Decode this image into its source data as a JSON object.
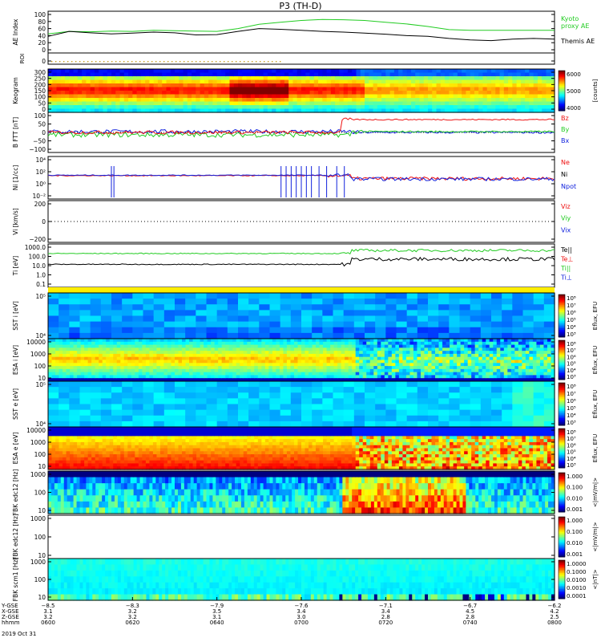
{
  "title": "P3 (TH-D)",
  "colors": {
    "green": "#22cc22",
    "black": "#000000",
    "red": "#ee1111",
    "blue": "#1122dd",
    "yellow": "#ffee00"
  },
  "chart_data": [
    {
      "type": "line",
      "panel": "ae",
      "ylabel": "AE Index",
      "ylim": [
        0,
        100
      ],
      "yticks": [
        "100",
        "80",
        "60",
        "40",
        "20",
        "0"
      ],
      "series": [
        {
          "name": "Kyoto proxy AE",
          "color": "green",
          "x": [
            0,
            5,
            10,
            15,
            20,
            25,
            30,
            35,
            40,
            45,
            50,
            55,
            60,
            65,
            70,
            75,
            80,
            85,
            90,
            95,
            100,
            105,
            110,
            115,
            120
          ],
          "y": [
            45,
            52,
            51,
            53,
            52,
            55,
            54,
            53,
            52,
            60,
            72,
            78,
            83,
            86,
            85,
            83,
            78,
            73,
            66,
            57,
            55,
            55,
            55,
            55,
            55
          ]
        },
        {
          "name": "Themis AE",
          "color": "black",
          "x": [
            0,
            5,
            10,
            15,
            20,
            25,
            30,
            35,
            40,
            45,
            50,
            55,
            60,
            65,
            70,
            75,
            80,
            85,
            90,
            95,
            100,
            105,
            110,
            115,
            120
          ],
          "y": [
            38,
            52,
            48,
            45,
            47,
            50,
            48,
            42,
            43,
            52,
            60,
            58,
            55,
            52,
            50,
            47,
            44,
            40,
            38,
            32,
            28,
            26,
            30,
            32,
            30
          ]
        }
      ]
    },
    {
      "type": "line",
      "panel": "roi",
      "ylabel": "ROI",
      "yticks": [
        "0"
      ]
    },
    {
      "type": "heatmap",
      "panel": "keogram",
      "ylabel": "Keogram",
      "yticks": [
        "300",
        "250",
        "200",
        "150",
        "100",
        "50",
        "0"
      ],
      "colorbar": {
        "ticks": [
          "6000",
          "5000",
          "4000"
        ],
        "label": "[counts]"
      }
    },
    {
      "type": "line",
      "panel": "bfield",
      "ylabel": "B FTT [nT]",
      "yticks": [
        "100",
        "50",
        "0",
        "−50",
        "−100"
      ],
      "series": [
        {
          "name": "Bz",
          "color": "red"
        },
        {
          "name": "By",
          "color": "green"
        },
        {
          "name": "Bx",
          "color": "blue"
        }
      ]
    },
    {
      "type": "line",
      "panel": "density",
      "ylabel": "Ni [1/cc]",
      "yticks": [
        "10⁴",
        "10²",
        "10⁰",
        "10⁻²"
      ],
      "series": [
        {
          "name": "Ne",
          "color": "red"
        },
        {
          "name": "Ni",
          "color": "black"
        },
        {
          "name": "Npot",
          "color": "blue"
        }
      ]
    },
    {
      "type": "line",
      "panel": "velocity",
      "ylabel": "Vi [km/s]",
      "yticks": [
        "200",
        "0",
        "−200"
      ],
      "series": [
        {
          "name": "Viz",
          "color": "red"
        },
        {
          "name": "Viy",
          "color": "green"
        },
        {
          "name": "Vix",
          "color": "blue"
        }
      ]
    },
    {
      "type": "line",
      "panel": "temperature",
      "ylabel": "Ti [eV]",
      "yticks": [
        "1000.0",
        "100.0",
        "10.0",
        "1.0",
        "0.1"
      ],
      "series": [
        {
          "name": "Te||",
          "color": "black"
        },
        {
          "name": "Te⊥",
          "color": "red"
        },
        {
          "name": "Ti||",
          "color": "green"
        },
        {
          "name": "Ti⊥",
          "color": "blue"
        }
      ]
    },
    {
      "type": "heatmap",
      "panel": "sst_i",
      "ylabel": "SST i [eV]",
      "yticks": [
        "10⁵",
        "10⁴"
      ],
      "colorbar": {
        "label": "Eflux, EFU"
      }
    },
    {
      "type": "heatmap",
      "panel": "esa_i",
      "ylabel": "ESA i [eV]",
      "yticks": [
        "10000",
        "1000",
        "100",
        "10"
      ],
      "colorbar": {
        "label": "Eflux, EFU"
      }
    },
    {
      "type": "heatmap",
      "panel": "sst_e",
      "ylabel": "SST e [eV]",
      "yticks": [
        "10⁵",
        "10⁴"
      ],
      "colorbar": {
        "label": "Eflux, EFU"
      }
    },
    {
      "type": "heatmap",
      "panel": "esa_e",
      "ylabel": "ESA e [eV]",
      "yticks": [
        "10000",
        "1000",
        "100",
        "10"
      ],
      "colorbar": {
        "label": "Eflux, EFU"
      }
    },
    {
      "type": "heatmap",
      "panel": "fbk_e1",
      "ylabel": "FBK edc12 [Hz]",
      "yticks": [
        "1000",
        "100",
        "10"
      ],
      "colorbar": {
        "ticks": [
          "1.000",
          "0.100",
          "0.010",
          "0.001"
        ],
        "label": "<|mV/m|>"
      }
    },
    {
      "type": "heatmap",
      "panel": "fbk_e2",
      "ylabel": "FBK edc12 [Hz]",
      "yticks": [
        "1000",
        "100",
        "10"
      ],
      "colorbar": {
        "ticks": [
          "1.000",
          "0.100",
          "0.010",
          "0.001"
        ],
        "label": "<|mV/m|>"
      }
    },
    {
      "type": "heatmap",
      "panel": "fbk_b",
      "ylabel": "FBK scm1 [Hz]",
      "yticks": [
        "1000",
        "100",
        "10"
      ],
      "colorbar": {
        "ticks": [
          "1.0000",
          "0.1000",
          "0.0100",
          "0.0010",
          "0.0001"
        ],
        "label": "<|nT|>"
      }
    }
  ],
  "time_axis": {
    "row_labels": [
      "Y-GSE",
      "X-GSE",
      "Z-GSE",
      "hhmm",
      "2019 Oct 31"
    ],
    "ticks": [
      {
        "vals": [
          "−8.5",
          "3.1",
          "3.2",
          "0600"
        ]
      },
      {
        "vals": [
          "−8.3",
          "3.2",
          "3.2",
          "0620"
        ]
      },
      {
        "vals": [
          "−7.9",
          "3.5",
          "3.1",
          "0640"
        ]
      },
      {
        "vals": [
          "−7.6",
          "3.4",
          "3.0",
          "0700"
        ]
      },
      {
        "vals": [
          "−7.1",
          "3.4",
          "2.8",
          "0720"
        ]
      },
      {
        "vals": [
          "−6.7",
          "4.5",
          "2.8",
          "0740"
        ]
      },
      {
        "vals": [
          "−6.2",
          "4.2",
          "2.5",
          "0800"
        ]
      }
    ]
  }
}
